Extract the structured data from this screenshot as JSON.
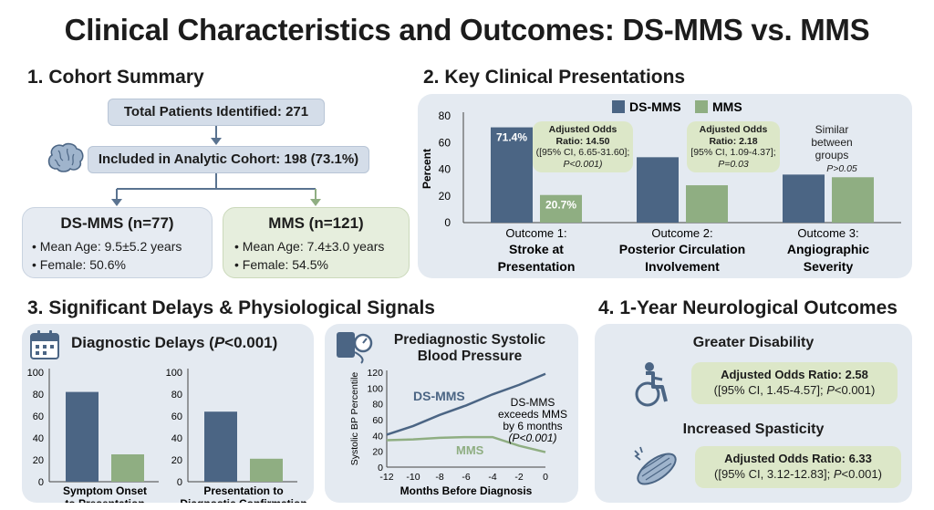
{
  "title": "Clinical Characteristics and Outcomes: DS-MMS vs. MMS",
  "colors": {
    "ds_mms": "#4b6584",
    "mms": "#8fae82"
  },
  "section1": {
    "heading": "1. Cohort Summary",
    "total": "Total Patients Identified: 271",
    "included": "Included in Analytic Cohort: 198 (73.1%)",
    "icon": "brain-icon",
    "ds_mms": {
      "title": "DS-MMS (n=77)",
      "age": "Mean Age: 9.5±5.2 years",
      "female": "Female: 50.6%"
    },
    "mms": {
      "title": "MMS (n=121)",
      "age": "Mean Age: 7.4±3.0 years",
      "female": "Female: 54.5%"
    }
  },
  "section2": {
    "heading": "2. Key Clinical Presentations",
    "legend": [
      "DS-MMS",
      "MMS"
    ],
    "callouts": [
      {
        "line1": "Adjusted Odds",
        "line2": "Ratio: 14.50",
        "line3": "([95% CI, 6.65-31.60];",
        "line4": "P<0.001)"
      },
      {
        "line1": "Adjusted Odds",
        "line2": "Ratio: 2.18",
        "line3": "[95% CI, 1.09-4.37];",
        "line4": "P=0.03"
      }
    ],
    "similar": {
      "line1": "Similar",
      "line2": "between",
      "line3": "groups",
      "p": "P>0.05"
    },
    "chart_data": {
      "type": "bar",
      "ylabel": "Percent",
      "ylim": [
        0,
        80
      ],
      "yticks": [
        0,
        20,
        40,
        60,
        80
      ],
      "categories": [
        {
          "line1": "Outcome 1:",
          "line2": "Stroke at",
          "line3": "Presentation"
        },
        {
          "line1": "Outcome 2:",
          "line2": "Posterior Circulation",
          "line3": "Involvement"
        },
        {
          "line1": "Outcome 3:",
          "line2": "Angiographic",
          "line3": "Severity"
        }
      ],
      "series": [
        {
          "name": "DS-MMS",
          "values": [
            71.4,
            49,
            36
          ],
          "labels": [
            "71.4%",
            "",
            ""
          ]
        },
        {
          "name": "MMS",
          "values": [
            20.7,
            28,
            34
          ],
          "labels": [
            "20.7%",
            "",
            ""
          ]
        }
      ]
    }
  },
  "section3": {
    "heading": "3. Significant Delays & Physiological Signals",
    "delays": {
      "title": "Diagnostic Delays (",
      "title_p": "P",
      "title_end": "<0.001)",
      "icon": "calendar-icon",
      "chart_data": [
        {
          "type": "bar",
          "ylim": [
            0,
            100
          ],
          "yticks": [
            0,
            20,
            40,
            60,
            80,
            100
          ],
          "values": [
            82,
            25
          ],
          "xlabel": [
            "Symptom Onset",
            "to Presentation"
          ]
        },
        {
          "type": "bar",
          "ylim": [
            0,
            100
          ],
          "yticks": [
            0,
            20,
            40,
            60,
            80,
            100
          ],
          "values": [
            64,
            21
          ],
          "xlabel": [
            "Presentation to",
            "Diagnostic Confirmation"
          ]
        }
      ]
    },
    "bp": {
      "title_line1": "Prediagnostic Systolic",
      "title_line2": "Blood Pressure",
      "icon": "blood-pressure-cuff-icon",
      "annotation": [
        "DS-MMS",
        "exceeds MMS",
        "by 6 months",
        "(P<0.001)"
      ],
      "chart_data": {
        "type": "line",
        "xlabel": "Months Before Diagnosis",
        "ylabel": "Systolic BP Percentile",
        "xlim": [
          -12,
          0
        ],
        "ylim": [
          0,
          120
        ],
        "xticks": [
          -12,
          -10,
          -8,
          -6,
          -4,
          -2,
          0
        ],
        "yticks": [
          0,
          20,
          40,
          60,
          80,
          100,
          120
        ],
        "series": [
          {
            "name": "DS-MMS",
            "x": [
              -12,
              -10,
              -8,
              -6,
              -4,
              -2,
              0
            ],
            "y": [
              41,
              52,
              66,
              78,
              92,
              104,
              118
            ]
          },
          {
            "name": "MMS",
            "x": [
              -12,
              -10,
              -8,
              -6,
              -4,
              -2,
              0
            ],
            "y": [
              34,
              35,
              37,
              38,
              38,
              27,
              19
            ]
          }
        ]
      }
    }
  },
  "section4": {
    "heading": "4. 1-Year Neurological Outcomes",
    "disability": {
      "title": "Greater Disability",
      "or": "Adjusted Odds Ratio: 2.58",
      "ci": "([95% CI, 1.45-4.57]; ",
      "p": "P",
      "p_rest": "<0.001)",
      "icon": "wheelchair-icon"
    },
    "spasticity": {
      "title": "Increased Spasticity",
      "or": "Adjusted Odds Ratio: 6.33",
      "ci": "([95% CI, 3.12-12.83]; ",
      "p": "P",
      "p_rest": "<0.001)",
      "icon": "muscle-spasm-icon"
    }
  }
}
